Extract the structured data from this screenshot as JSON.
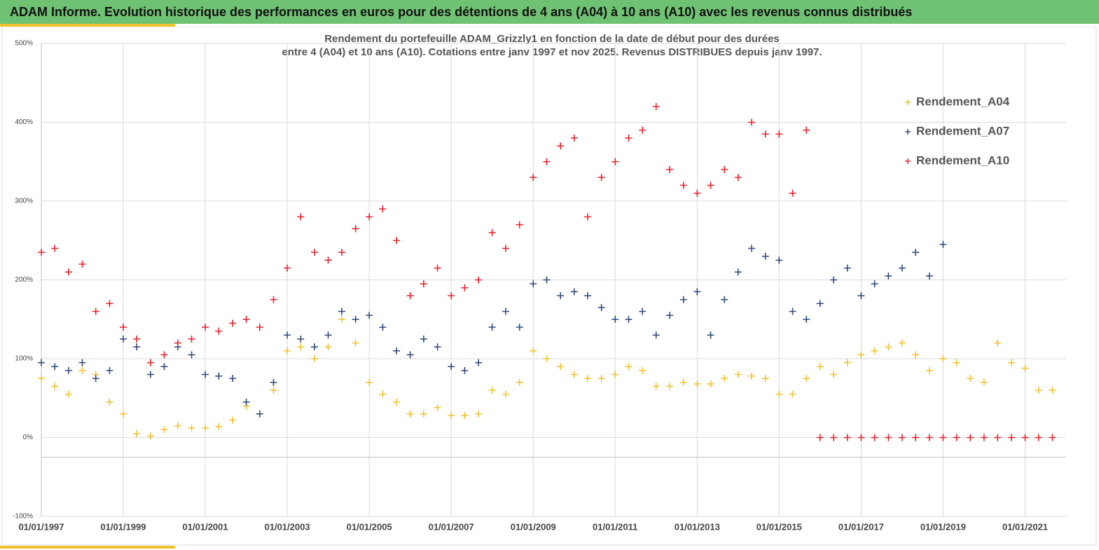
{
  "page_title": "ADAM Informe. Evolution historique des performances en euros pour des détentions de 4 ans (A04) à 10 ans (A10) avec les revenus connus distribués",
  "chart_data": {
    "type": "scatter",
    "title": "Rendement du portefeuille ADAM_Grizzly1 en fonction de la date de début pour des durées",
    "subtitle": "entre 4 (A04) et 10 ans (A10). Cotations entre janv 1997 et nov 2025. Revenus DISTRIBUES depuis janv 1997.",
    "x": [
      "1997-01-01",
      "1997-05-01",
      "1997-09-01",
      "1998-01-01",
      "1998-05-01",
      "1998-09-01",
      "1999-01-01",
      "1999-05-01",
      "1999-09-01",
      "2000-01-01",
      "2000-05-01",
      "2000-09-01",
      "2001-01-01",
      "2001-05-01",
      "2001-09-01",
      "2002-01-01",
      "2002-05-01",
      "2002-09-01",
      "2003-01-01",
      "2003-05-01",
      "2003-09-01",
      "2004-01-01",
      "2004-05-01",
      "2004-09-01",
      "2005-01-01",
      "2005-05-01",
      "2005-09-01",
      "2006-01-01",
      "2006-05-01",
      "2006-09-01",
      "2007-01-01",
      "2007-05-01",
      "2007-09-01",
      "2008-01-01",
      "2008-05-01",
      "2008-09-01",
      "2009-01-01",
      "2009-05-01",
      "2009-09-01",
      "2010-01-01",
      "2010-05-01",
      "2010-09-01",
      "2011-01-01",
      "2011-05-01",
      "2011-09-01",
      "2012-01-01",
      "2012-05-01",
      "2012-09-01",
      "2013-01-01",
      "2013-05-01",
      "2013-09-01",
      "2014-01-01",
      "2014-05-01",
      "2014-09-01",
      "2015-01-01",
      "2015-05-01",
      "2015-09-01",
      "2016-01-01",
      "2016-05-01",
      "2016-09-01",
      "2017-01-01",
      "2017-05-01",
      "2017-09-01",
      "2018-01-01",
      "2018-05-01",
      "2018-09-01",
      "2019-01-01",
      "2019-05-01",
      "2019-09-01",
      "2020-01-01",
      "2020-05-01",
      "2020-09-01",
      "2021-01-01",
      "2021-05-01",
      "2021-09-01"
    ],
    "series": [
      {
        "name": "Rendement_A04",
        "color": "#f2c12e",
        "values": [
          75,
          65,
          55,
          85,
          80,
          45,
          30,
          5,
          2,
          10,
          15,
          12,
          12,
          14,
          22,
          40,
          30,
          60,
          110,
          115,
          100,
          115,
          150,
          120,
          70,
          55,
          45,
          30,
          30,
          38,
          28,
          28,
          30,
          60,
          55,
          70,
          110,
          100,
          90,
          80,
          75,
          75,
          80,
          90,
          85,
          65,
          65,
          70,
          68,
          68,
          75,
          80,
          78,
          75,
          55,
          55,
          75,
          90,
          80,
          95,
          105,
          110,
          115,
          120,
          105,
          85,
          100,
          95,
          75,
          70,
          120,
          95,
          88,
          60,
          60
        ]
      },
      {
        "name": "Rendement_A07",
        "color": "#2f4b7c",
        "values": [
          95,
          90,
          85,
          95,
          75,
          85,
          125,
          115,
          80,
          90,
          115,
          105,
          80,
          78,
          75,
          45,
          30,
          70,
          130,
          125,
          115,
          130,
          160,
          150,
          155,
          140,
          110,
          105,
          125,
          115,
          90,
          85,
          95,
          140,
          160,
          140,
          195,
          200,
          180,
          185,
          180,
          165,
          150,
          150,
          160,
          130,
          155,
          175,
          185,
          130,
          175,
          210,
          240,
          230,
          225,
          160,
          150,
          170,
          200,
          215,
          180,
          195,
          205,
          215,
          235,
          205,
          245,
          null,
          null,
          null,
          null,
          null,
          null,
          null,
          null
        ]
      },
      {
        "name": "Rendement_A10",
        "color": "#e8212b",
        "values": [
          235,
          240,
          210,
          220,
          160,
          170,
          140,
          125,
          95,
          105,
          120,
          125,
          140,
          135,
          145,
          150,
          140,
          175,
          215,
          280,
          235,
          225,
          235,
          265,
          280,
          290,
          250,
          180,
          195,
          215,
          180,
          190,
          200,
          260,
          240,
          270,
          330,
          350,
          370,
          380,
          280,
          330,
          350,
          380,
          390,
          420,
          340,
          320,
          310,
          320,
          340,
          330,
          400,
          385,
          385,
          310,
          390,
          0,
          0,
          0,
          0,
          0,
          0,
          0,
          0,
          0,
          0,
          0,
          0,
          0,
          0,
          0,
          0,
          0,
          0
        ]
      }
    ],
    "xlim": [
      "1997-01-01",
      "2022-01-01"
    ],
    "xticks": [
      {
        "value": "1997-01-01",
        "label": "01/01/1997"
      },
      {
        "value": "1999-01-01",
        "label": "01/01/1999"
      },
      {
        "value": "2001-01-01",
        "label": "01/01/2001"
      },
      {
        "value": "2003-01-01",
        "label": "01/01/2003"
      },
      {
        "value": "2005-01-01",
        "label": "01/01/2005"
      },
      {
        "value": "2007-01-01",
        "label": "01/01/2007"
      },
      {
        "value": "2009-01-01",
        "label": "01/01/2009"
      },
      {
        "value": "2011-01-01",
        "label": "01/01/2011"
      },
      {
        "value": "2013-01-01",
        "label": "01/01/2013"
      },
      {
        "value": "2015-01-01",
        "label": "01/01/2015"
      },
      {
        "value": "2017-01-01",
        "label": "01/01/2017"
      },
      {
        "value": "2019-01-01",
        "label": "01/01/2019"
      },
      {
        "value": "2021-01-01",
        "label": "01/01/2021"
      }
    ],
    "ylim": [
      -100,
      500
    ],
    "yticks": [
      {
        "value": -100,
        "label": "-100%"
      },
      {
        "value": 0,
        "label": "0%"
      },
      {
        "value": 100,
        "label": "100%"
      },
      {
        "value": 200,
        "label": "200%"
      },
      {
        "value": 300,
        "label": "300%"
      },
      {
        "value": 400,
        "label": "400%"
      },
      {
        "value": 500,
        "label": "500%"
      }
    ],
    "x_axis_at": -25,
    "grid": true,
    "legend": "upper right"
  }
}
